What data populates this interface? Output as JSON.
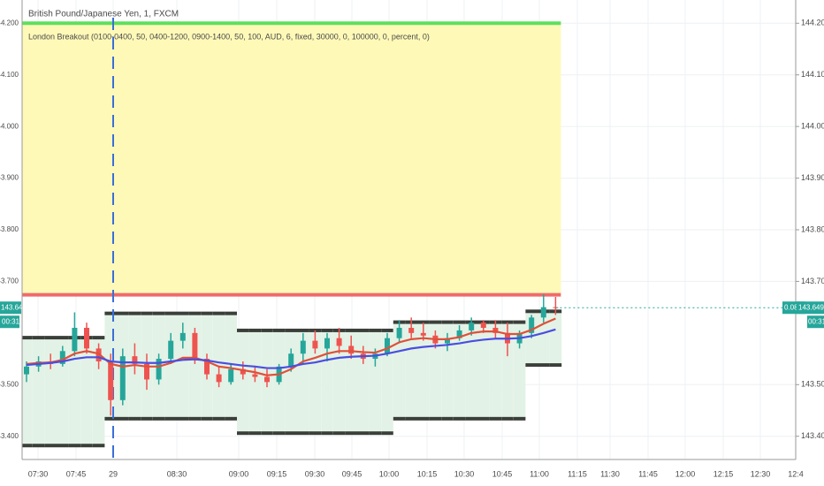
{
  "chart_data": {
    "type": "candlestick",
    "title": "British Pound/Japanese Yen, 1, FXCM",
    "subtitle": "London Breakout (0100-0400, 50, 0400-1200, 0900-1400, 50, 100, AUD, 6, fixed, 30000, 0, 100000, 0, percent, 0)",
    "xlabels": [
      "07:30",
      "07:45",
      "29",
      "08:30",
      "09:00",
      "09:15",
      "09:30",
      "09:45",
      "10:00",
      "10:15",
      "10:30",
      "10:45",
      "11:00",
      "11:15",
      "11:30",
      "11:45",
      "12:00",
      "12:15",
      "12:30",
      "12:4"
    ],
    "open": [
      143.52,
      143.535,
      143.545,
      143.54,
      143.565,
      143.61,
      143.57,
      143.545,
      143.47,
      143.555,
      143.54,
      143.51,
      143.55,
      143.585,
      143.6,
      143.55,
      143.52,
      143.505,
      143.53,
      143.52,
      143.515,
      143.505,
      143.535,
      143.56,
      143.585,
      143.57,
      143.59,
      143.575,
      143.56,
      143.55,
      143.56,
      143.59,
      143.61,
      143.6,
      143.595,
      143.58,
      143.59,
      143.605,
      143.62,
      143.61,
      143.6,
      143.58,
      143.6,
      143.63,
      143.65
    ],
    "high": [
      143.545,
      143.555,
      143.56,
      143.575,
      143.64,
      143.62,
      143.58,
      143.56,
      143.57,
      143.58,
      143.56,
      143.56,
      143.6,
      143.62,
      143.61,
      143.56,
      143.535,
      143.54,
      143.545,
      143.535,
      143.53,
      143.54,
      143.57,
      143.6,
      143.605,
      143.6,
      143.61,
      143.595,
      143.575,
      143.57,
      143.6,
      143.625,
      143.63,
      143.62,
      143.605,
      143.6,
      143.615,
      143.63,
      143.625,
      143.625,
      143.62,
      143.605,
      143.635,
      143.675,
      143.67
    ],
    "low": [
      143.505,
      143.525,
      143.53,
      143.535,
      143.555,
      143.56,
      143.53,
      143.44,
      143.46,
      143.52,
      143.49,
      143.5,
      143.54,
      143.57,
      143.54,
      143.51,
      143.495,
      143.5,
      143.51,
      143.505,
      143.495,
      143.5,
      143.525,
      143.54,
      143.56,
      143.545,
      143.56,
      143.55,
      143.54,
      143.535,
      143.555,
      143.58,
      143.59,
      143.585,
      143.57,
      143.565,
      143.585,
      143.595,
      143.6,
      143.59,
      143.555,
      143.57,
      143.59,
      143.62,
      143.635
    ],
    "close": [
      143.535,
      143.545,
      143.54,
      143.565,
      143.61,
      143.57,
      143.545,
      143.47,
      143.555,
      143.54,
      143.51,
      143.55,
      143.585,
      143.6,
      143.55,
      143.52,
      143.505,
      143.53,
      143.52,
      143.515,
      143.505,
      143.535,
      143.56,
      143.585,
      143.57,
      143.59,
      143.575,
      143.56,
      143.55,
      143.56,
      143.59,
      143.61,
      143.6,
      143.595,
      143.58,
      143.59,
      143.605,
      143.62,
      143.61,
      143.6,
      143.58,
      143.6,
      143.63,
      143.65,
      143.649
    ],
    "up_color": "#26a69a",
    "down_color": "#ef5350",
    "series": [
      {
        "color": "#e0503a",
        "values": [
          143.54,
          143.542,
          143.543,
          143.548,
          143.56,
          143.565,
          143.56,
          143.54,
          143.535,
          143.538,
          143.535,
          143.535,
          143.542,
          143.552,
          143.552,
          143.545,
          143.535,
          143.532,
          143.528,
          143.524,
          143.518,
          143.52,
          143.53,
          143.545,
          143.552,
          143.56,
          143.565,
          143.565,
          143.563,
          143.562,
          143.57,
          143.582,
          143.588,
          143.59,
          143.588,
          143.588,
          143.592,
          143.6,
          143.603,
          143.603,
          143.598,
          143.598,
          143.606,
          143.618,
          143.628
        ]
      },
      {
        "color": "#4a4ee0",
        "values": [
          143.538,
          143.54,
          143.542,
          143.545,
          143.55,
          143.553,
          143.553,
          143.545,
          143.543,
          143.543,
          143.542,
          143.542,
          143.545,
          143.548,
          143.549,
          143.547,
          143.543,
          143.54,
          143.537,
          143.535,
          143.532,
          143.532,
          143.535,
          143.54,
          143.543,
          143.548,
          143.552,
          143.554,
          143.555,
          143.556,
          143.56,
          143.565,
          143.57,
          143.573,
          143.575,
          143.577,
          143.58,
          143.584,
          143.587,
          143.589,
          143.589,
          143.59,
          143.594,
          143.6,
          143.607
        ]
      }
    ],
    "channel_upper": [
      143.591,
      143.591,
      143.591,
      143.591,
      143.591,
      143.591,
      143.591,
      143.638,
      143.638,
      143.638,
      143.638,
      143.638,
      143.638,
      143.638,
      143.638,
      143.638,
      143.638,
      143.638,
      143.605,
      143.605,
      143.605,
      143.605,
      143.605,
      143.605,
      143.605,
      143.605,
      143.605,
      143.605,
      143.605,
      143.605,
      143.605,
      143.621,
      143.621,
      143.621,
      143.621,
      143.621,
      143.621,
      143.621,
      143.621,
      143.621,
      143.621,
      143.621,
      143.642,
      143.642,
      143.642
    ],
    "channel_lower": [
      143.382,
      143.382,
      143.382,
      143.382,
      143.382,
      143.382,
      143.382,
      143.434,
      143.434,
      143.434,
      143.434,
      143.434,
      143.434,
      143.434,
      143.434,
      143.434,
      143.434,
      143.434,
      143.406,
      143.406,
      143.406,
      143.406,
      143.406,
      143.406,
      143.406,
      143.406,
      143.406,
      143.406,
      143.406,
      143.406,
      143.406,
      143.434,
      143.434,
      143.434,
      143.434,
      143.434,
      143.434,
      143.434,
      143.434,
      143.434,
      143.434,
      143.434,
      143.538,
      143.538,
      143.538
    ],
    "channel_color": "#3a3f3a",
    "target_level": 144.2,
    "target_color": "#5ee05e",
    "stop_level": 143.674,
    "stop_color": "#f06a6a",
    "zone_color": "#fff9b8",
    "price_tag": "143.649",
    "countdown": "00:31",
    "change_tag": "0.08%",
    "ylim": [
      143.355,
      144.245
    ],
    "yticks": [
      {
        "value": 144.2,
        "label": "144.200"
      },
      {
        "value": 144.1,
        "label": "144.100"
      },
      {
        "value": 144.0,
        "label": "144.000"
      },
      {
        "value": 143.9,
        "label": "143.900"
      },
      {
        "value": 143.8,
        "label": "143.800"
      },
      {
        "value": 143.7,
        "label": "143.700"
      },
      {
        "value": 143.5,
        "label": "143.500"
      },
      {
        "value": 143.4,
        "label": "143.400"
      }
    ],
    "grid": true
  }
}
